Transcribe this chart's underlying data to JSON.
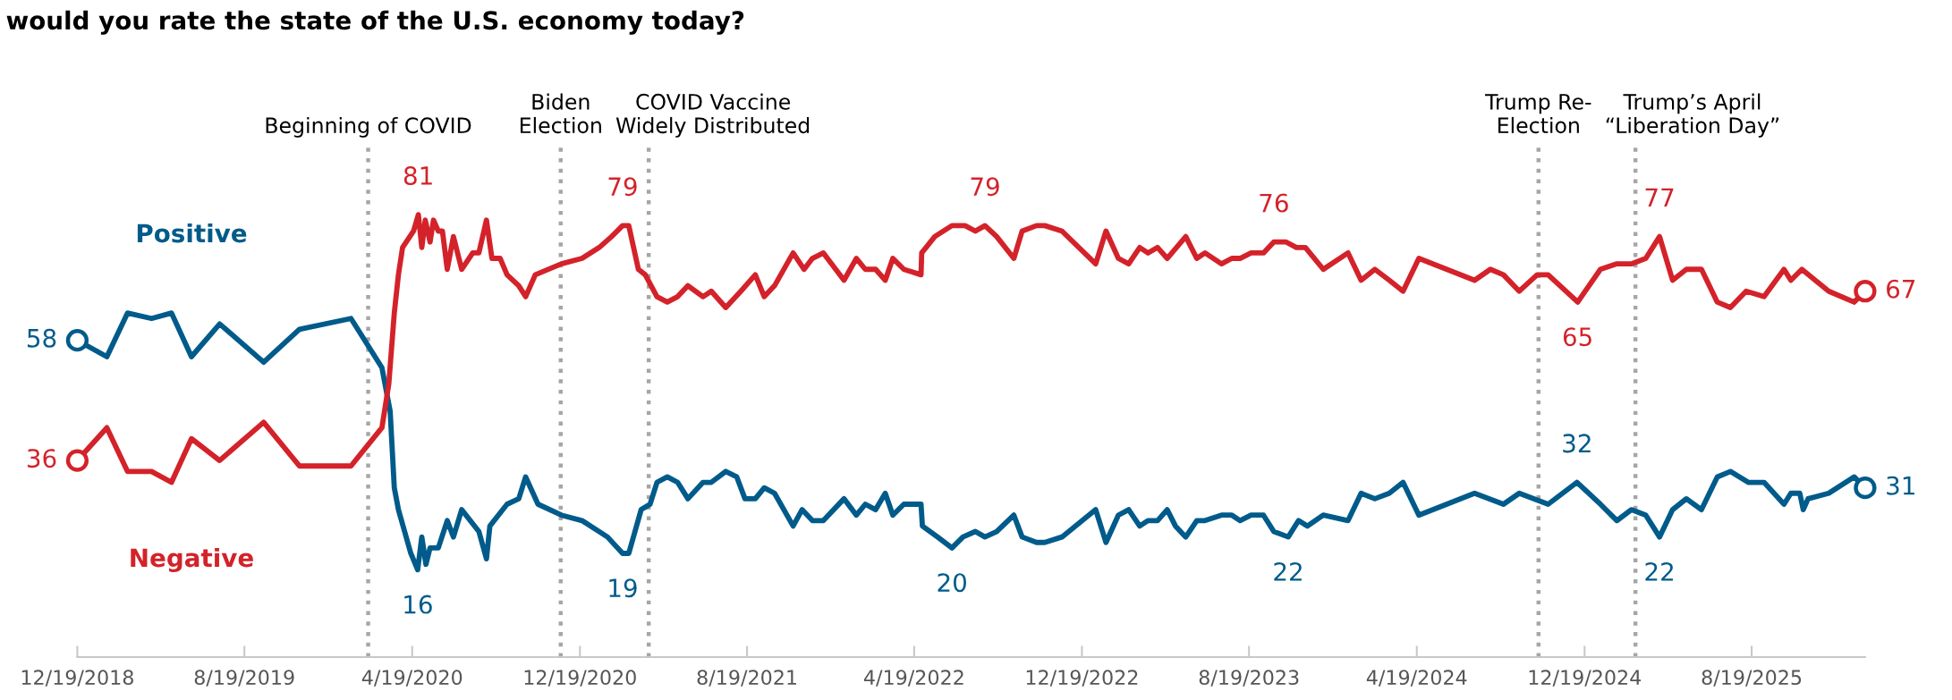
{
  "chart_data": {
    "type": "line",
    "title": "would you rate the state of the U.S. economy today?",
    "xlim": [
      "2018-12-19",
      "2026-01-31"
    ],
    "xticks": [
      {
        "value": "2018-12-19",
        "label": "12/19/2018"
      },
      {
        "value": "2019-08-19",
        "label": "8/19/2019"
      },
      {
        "value": "2020-04-19",
        "label": "4/19/2020"
      },
      {
        "value": "2020-12-19",
        "label": "12/19/2020"
      },
      {
        "value": "2021-08-19",
        "label": "8/19/2021"
      },
      {
        "value": "2022-04-19",
        "label": "4/19/2022"
      },
      {
        "value": "2022-12-19",
        "label": "12/19/2022"
      },
      {
        "value": "2023-08-19",
        "label": "8/19/2023"
      },
      {
        "value": "2024-04-19",
        "label": "4/19/2024"
      },
      {
        "value": "2024-12-19",
        "label": "12/19/2024"
      },
      {
        "value": "2025-08-19",
        "label": "8/19/2025"
      }
    ],
    "tick_labels": "x",
    "grid": false,
    "legend": false,
    "line_style": "solid",
    "series": [
      {
        "name": "Positive",
        "color": "#005b8a",
        "x": [
          "2018-12-19",
          "2019-01-31",
          "2019-03-02",
          "2019-04-06",
          "2019-05-05",
          "2019-06-03",
          "2019-07-14",
          "2019-09-16",
          "2019-11-07",
          "2020-01-21",
          "2020-03-06",
          "2020-03-18",
          "2020-03-24",
          "2020-03-30",
          "2020-04-08",
          "2020-04-17",
          "2020-04-27",
          "2020-05-03",
          "2020-05-09",
          "2020-05-15",
          "2020-05-27",
          "2020-06-09",
          "2020-06-18",
          "2020-06-30",
          "2020-07-25",
          "2020-08-05",
          "2020-08-10",
          "2020-09-04",
          "2020-09-21",
          "2020-10-01",
          "2020-10-19",
          "2020-11-22",
          "2020-12-22",
          "2021-01-28",
          "2021-02-19",
          "2021-02-28",
          "2021-03-18",
          "2021-03-31",
          "2021-04-10",
          "2021-04-25",
          "2021-05-10",
          "2021-05-25",
          "2021-06-16",
          "2021-06-28",
          "2021-07-19",
          "2021-08-04",
          "2021-08-16",
          "2021-08-31",
          "2021-09-13",
          "2021-09-28",
          "2021-10-25",
          "2021-11-07",
          "2021-11-22",
          "2021-12-08",
          "2022-01-07",
          "2022-01-25",
          "2022-02-07",
          "2022-02-22",
          "2022-03-08",
          "2022-03-19",
          "2022-04-04",
          "2022-04-29",
          "2022-05-01",
          "2022-05-23",
          "2022-06-13",
          "2022-06-29",
          "2022-07-17",
          "2022-07-31",
          "2022-08-17",
          "2022-09-11",
          "2022-09-23",
          "2022-10-14",
          "2022-10-26",
          "2022-11-20",
          "2023-01-08",
          "2023-01-23",
          "2023-02-10",
          "2023-02-25",
          "2023-03-13",
          "2023-03-25",
          "2023-04-08",
          "2023-04-22",
          "2023-05-04",
          "2023-05-19",
          "2023-06-04",
          "2023-06-16",
          "2023-07-10",
          "2023-07-25",
          "2023-08-06",
          "2023-08-22",
          "2023-09-09",
          "2023-09-24",
          "2023-10-15",
          "2023-10-30",
          "2023-11-12",
          "2023-12-05",
          "2024-01-10",
          "2024-01-29",
          "2024-02-18",
          "2024-03-10",
          "2024-03-30",
          "2024-04-22",
          "2024-07-12",
          "2024-08-23",
          "2024-09-15",
          "2024-10-27",
          "2024-12-08",
          "2025-01-11",
          "2025-02-04",
          "2025-02-25",
          "2025-03-18",
          "2025-04-07",
          "2025-04-26",
          "2025-05-16",
          "2025-06-07",
          "2025-06-30",
          "2025-07-19",
          "2025-08-14",
          "2025-09-06",
          "2025-10-05",
          "2025-10-15",
          "2025-10-28",
          "2025-11-02",
          "2025-11-09",
          "2025-12-09",
          "2026-01-15",
          "2026-01-31"
        ],
        "values": [
          58,
          55,
          63,
          62,
          63,
          55,
          61,
          54,
          60,
          62,
          53,
          45,
          31,
          27,
          23,
          19,
          16,
          22,
          17,
          20,
          20,
          25,
          22,
          27,
          23,
          18,
          24,
          28,
          29,
          33,
          28,
          26,
          25,
          22,
          19,
          19,
          27,
          28,
          32,
          33,
          32,
          29,
          32,
          32,
          34,
          33,
          29,
          29,
          31,
          30,
          24,
          27,
          25,
          25,
          29,
          26,
          28,
          27,
          30,
          26,
          28,
          28,
          24,
          22,
          20,
          22,
          23,
          22,
          23,
          26,
          22,
          21,
          21,
          22,
          27,
          21,
          26,
          27,
          24,
          25,
          25,
          27,
          24,
          22,
          25,
          25,
          26,
          26,
          25,
          26,
          26,
          23,
          22,
          25,
          24,
          26,
          25,
          30,
          29,
          30,
          32,
          26,
          30,
          28,
          30,
          28,
          32,
          28,
          25,
          27,
          26,
          22,
          27,
          29,
          27,
          33,
          34,
          32,
          32,
          28,
          30,
          30,
          27,
          29,
          30,
          33,
          31
        ],
        "value_labels": [
          "58",
          null,
          null,
          null,
          null,
          null,
          null,
          null,
          null,
          null,
          null,
          null,
          null,
          null,
          null,
          null,
          "16",
          null,
          null,
          null,
          null,
          null,
          null,
          null,
          null,
          null,
          null,
          null,
          null,
          null,
          null,
          null,
          null,
          null,
          "19",
          null,
          null,
          null,
          null,
          null,
          null,
          null,
          null,
          null,
          null,
          null,
          null,
          null,
          null,
          null,
          null,
          null,
          null,
          null,
          null,
          null,
          null,
          null,
          null,
          null,
          null,
          null,
          null,
          null,
          "20",
          null,
          null,
          null,
          null,
          null,
          null,
          null,
          null,
          null,
          null,
          null,
          null,
          null,
          null,
          null,
          null,
          null,
          null,
          null,
          null,
          null,
          null,
          null,
          null,
          null,
          null,
          null,
          "22",
          null,
          null,
          null,
          null,
          null,
          null,
          null,
          null,
          null,
          null,
          null,
          null,
          null,
          "32",
          null,
          null,
          null,
          null,
          "22",
          null,
          null,
          null,
          null,
          null,
          null,
          null,
          null,
          null,
          null,
          null,
          null,
          null,
          null,
          "31"
        ]
      },
      {
        "name": "Negative",
        "color": "#d4222a",
        "x": [
          "2018-12-19",
          "2019-01-31",
          "2019-03-02",
          "2019-04-06",
          "2019-05-05",
          "2019-06-03",
          "2019-07-14",
          "2019-09-16",
          "2019-11-07",
          "2020-01-21",
          "2020-03-06",
          "2020-03-16",
          "2020-03-24",
          "2020-03-30",
          "2020-04-05",
          "2020-04-21",
          "2020-04-28",
          "2020-05-03",
          "2020-05-08",
          "2020-05-15",
          "2020-05-20",
          "2020-05-27",
          "2020-06-02",
          "2020-06-09",
          "2020-06-18",
          "2020-06-30",
          "2020-07-16",
          "2020-07-25",
          "2020-08-05",
          "2020-08-13",
          "2020-08-25",
          "2020-09-04",
          "2020-09-21",
          "2020-10-01",
          "2020-10-15",
          "2020-11-22",
          "2020-12-22",
          "2021-01-16",
          "2021-02-03",
          "2021-02-19",
          "2021-02-28",
          "2021-03-14",
          "2021-03-24",
          "2021-04-10",
          "2021-04-25",
          "2021-05-10",
          "2021-05-25",
          "2021-06-16",
          "2021-06-28",
          "2021-07-19",
          "2021-08-10",
          "2021-08-31",
          "2021-09-13",
          "2021-09-28",
          "2021-10-25",
          "2021-11-10",
          "2021-11-22",
          "2021-12-08",
          "2022-01-07",
          "2022-01-25",
          "2022-02-07",
          "2022-02-22",
          "2022-03-08",
          "2022-03-19",
          "2022-04-04",
          "2022-04-29",
          "2022-04-30",
          "2022-05-19",
          "2022-06-13",
          "2022-07-02",
          "2022-07-17",
          "2022-07-31",
          "2022-08-17",
          "2022-09-11",
          "2022-09-23",
          "2022-10-14",
          "2022-10-26",
          "2022-11-20",
          "2023-01-08",
          "2023-01-23",
          "2023-02-10",
          "2023-02-25",
          "2023-03-13",
          "2023-03-25",
          "2023-04-08",
          "2023-04-22",
          "2023-05-19",
          "2023-06-04",
          "2023-06-16",
          "2023-07-10",
          "2023-07-25",
          "2023-08-06",
          "2023-08-22",
          "2023-09-09",
          "2023-09-24",
          "2023-10-12",
          "2023-10-27",
          "2023-11-09",
          "2023-12-05",
          "2024-01-10",
          "2024-01-29",
          "2024-02-18",
          "2024-03-10",
          "2024-03-30",
          "2024-04-22",
          "2024-07-12",
          "2024-08-04",
          "2024-08-23",
          "2024-09-15",
          "2024-10-11",
          "2024-10-27",
          "2024-12-09",
          "2025-01-11",
          "2025-02-03",
          "2025-02-25",
          "2025-03-18",
          "2025-04-07",
          "2025-04-26",
          "2025-05-16",
          "2025-06-07",
          "2025-06-30",
          "2025-07-19",
          "2025-08-11",
          "2025-09-06",
          "2025-10-05",
          "2025-10-15",
          "2025-10-31",
          "2025-12-09",
          "2026-01-15",
          "2026-01-31"
        ],
        "values": [
          36,
          42,
          34,
          34,
          32,
          40,
          36,
          43,
          35,
          35,
          42,
          50,
          63,
          70,
          75,
          78,
          81,
          75,
          80,
          76,
          80,
          78,
          78,
          71,
          77,
          71,
          74,
          74,
          80,
          73,
          73,
          70,
          68,
          66,
          70,
          72,
          73,
          75,
          77,
          79,
          79,
          71,
          70,
          66,
          65,
          66,
          68,
          66,
          67,
          64,
          67,
          70,
          66,
          68,
          74,
          71,
          73,
          74,
          69,
          73,
          71,
          71,
          69,
          73,
          71,
          70,
          74,
          77,
          79,
          79,
          78,
          79,
          77,
          73,
          78,
          79,
          79,
          78,
          72,
          78,
          73,
          72,
          75,
          74,
          75,
          73,
          77,
          73,
          74,
          72,
          73,
          73,
          74,
          74,
          76,
          76,
          75,
          75,
          71,
          74,
          69,
          71,
          69,
          67,
          73,
          69,
          71,
          70,
          67,
          70,
          70,
          65,
          71,
          72,
          72,
          73,
          77,
          69,
          71,
          71,
          65,
          64,
          67,
          66,
          71,
          69,
          71,
          67,
          65,
          67
        ],
        "value_labels": [
          "36",
          null,
          null,
          null,
          null,
          null,
          null,
          null,
          null,
          null,
          null,
          null,
          null,
          null,
          null,
          null,
          "81",
          null,
          null,
          null,
          null,
          null,
          null,
          null,
          null,
          null,
          null,
          null,
          null,
          null,
          null,
          null,
          null,
          null,
          null,
          null,
          null,
          null,
          null,
          "79",
          null,
          null,
          null,
          null,
          null,
          null,
          null,
          null,
          null,
          null,
          null,
          null,
          null,
          null,
          null,
          null,
          null,
          null,
          null,
          null,
          null,
          null,
          null,
          null,
          null,
          null,
          null,
          null,
          null,
          null,
          null,
          "79",
          null,
          null,
          null,
          null,
          null,
          null,
          null,
          null,
          null,
          null,
          null,
          null,
          null,
          null,
          null,
          null,
          null,
          null,
          null,
          null,
          null,
          null,
          "76",
          null,
          null,
          null,
          null,
          null,
          null,
          null,
          null,
          null,
          null,
          null,
          null,
          null,
          null,
          null,
          null,
          "65",
          null,
          null,
          null,
          null,
          "77",
          null,
          null,
          null,
          null,
          null,
          null,
          null,
          null,
          null,
          null,
          null,
          null,
          "67"
        ]
      }
    ],
    "ref_lines": [
      {
        "axis": "x",
        "value": "2020-02-15",
        "label": "Beginning of COVID",
        "color": "#a6a6a6",
        "line_style": "dotted"
      },
      {
        "axis": "x",
        "value": "2020-11-21",
        "label": "Biden\nElection",
        "color": "#a6a6a6",
        "line_style": "dotted"
      },
      {
        "axis": "x",
        "value": "2021-03-29",
        "label": "COVID Vaccine\nWidely Distributed",
        "color": "#a6a6a6",
        "line_style": "dotted"
      },
      {
        "axis": "x",
        "value": "2024-10-13",
        "label": "Trump Re-\nElection",
        "color": "#a6a6a6",
        "line_style": "dotted"
      },
      {
        "axis": "x",
        "value": "2025-03-03",
        "label": "Trump’s April\n“Liberation Day”",
        "color": "#a6a6a6",
        "line_style": "dotted"
      }
    ]
  }
}
